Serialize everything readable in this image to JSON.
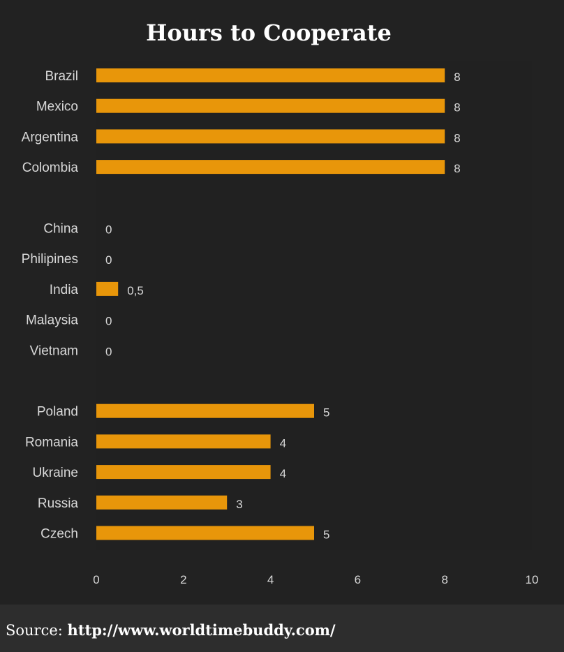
{
  "chart_data": {
    "type": "bar",
    "orientation": "horizontal",
    "title": "Hours to Cooperate",
    "categories": [
      "Brazil",
      "Mexico",
      "Argentina",
      "Colombia",
      "China",
      "Philipines",
      "India",
      "Malaysia",
      "Vietnam",
      "Poland",
      "Romania",
      "Ukraine",
      "Russia",
      "Czech"
    ],
    "values": [
      8,
      8,
      8,
      8,
      0,
      0,
      0.5,
      0,
      0,
      5,
      4,
      4,
      3,
      5
    ],
    "value_labels": [
      "8",
      "8",
      "8",
      "8",
      "0",
      "0",
      "0,5",
      "0",
      "0",
      "5",
      "4",
      "4",
      "3",
      "5"
    ],
    "groups": [
      [
        0,
        1,
        2,
        3
      ],
      [
        4,
        5,
        6,
        7,
        8
      ],
      [
        9,
        10,
        11,
        12,
        13
      ]
    ],
    "xlim": [
      0,
      10
    ],
    "xticks": [
      0,
      2,
      4,
      6,
      8,
      10
    ],
    "xlabel": "",
    "ylabel": "",
    "grid": false,
    "bar_color": "#e8960a"
  },
  "colors": {
    "background": "#222222",
    "plot_background": "#212121",
    "footer_background": "#2d2d2d",
    "text": "#ffffff",
    "tick_text": "#d8d8d8"
  },
  "source": {
    "label": "Source:",
    "url": "http://www.worldtimebuddy.com/"
  }
}
